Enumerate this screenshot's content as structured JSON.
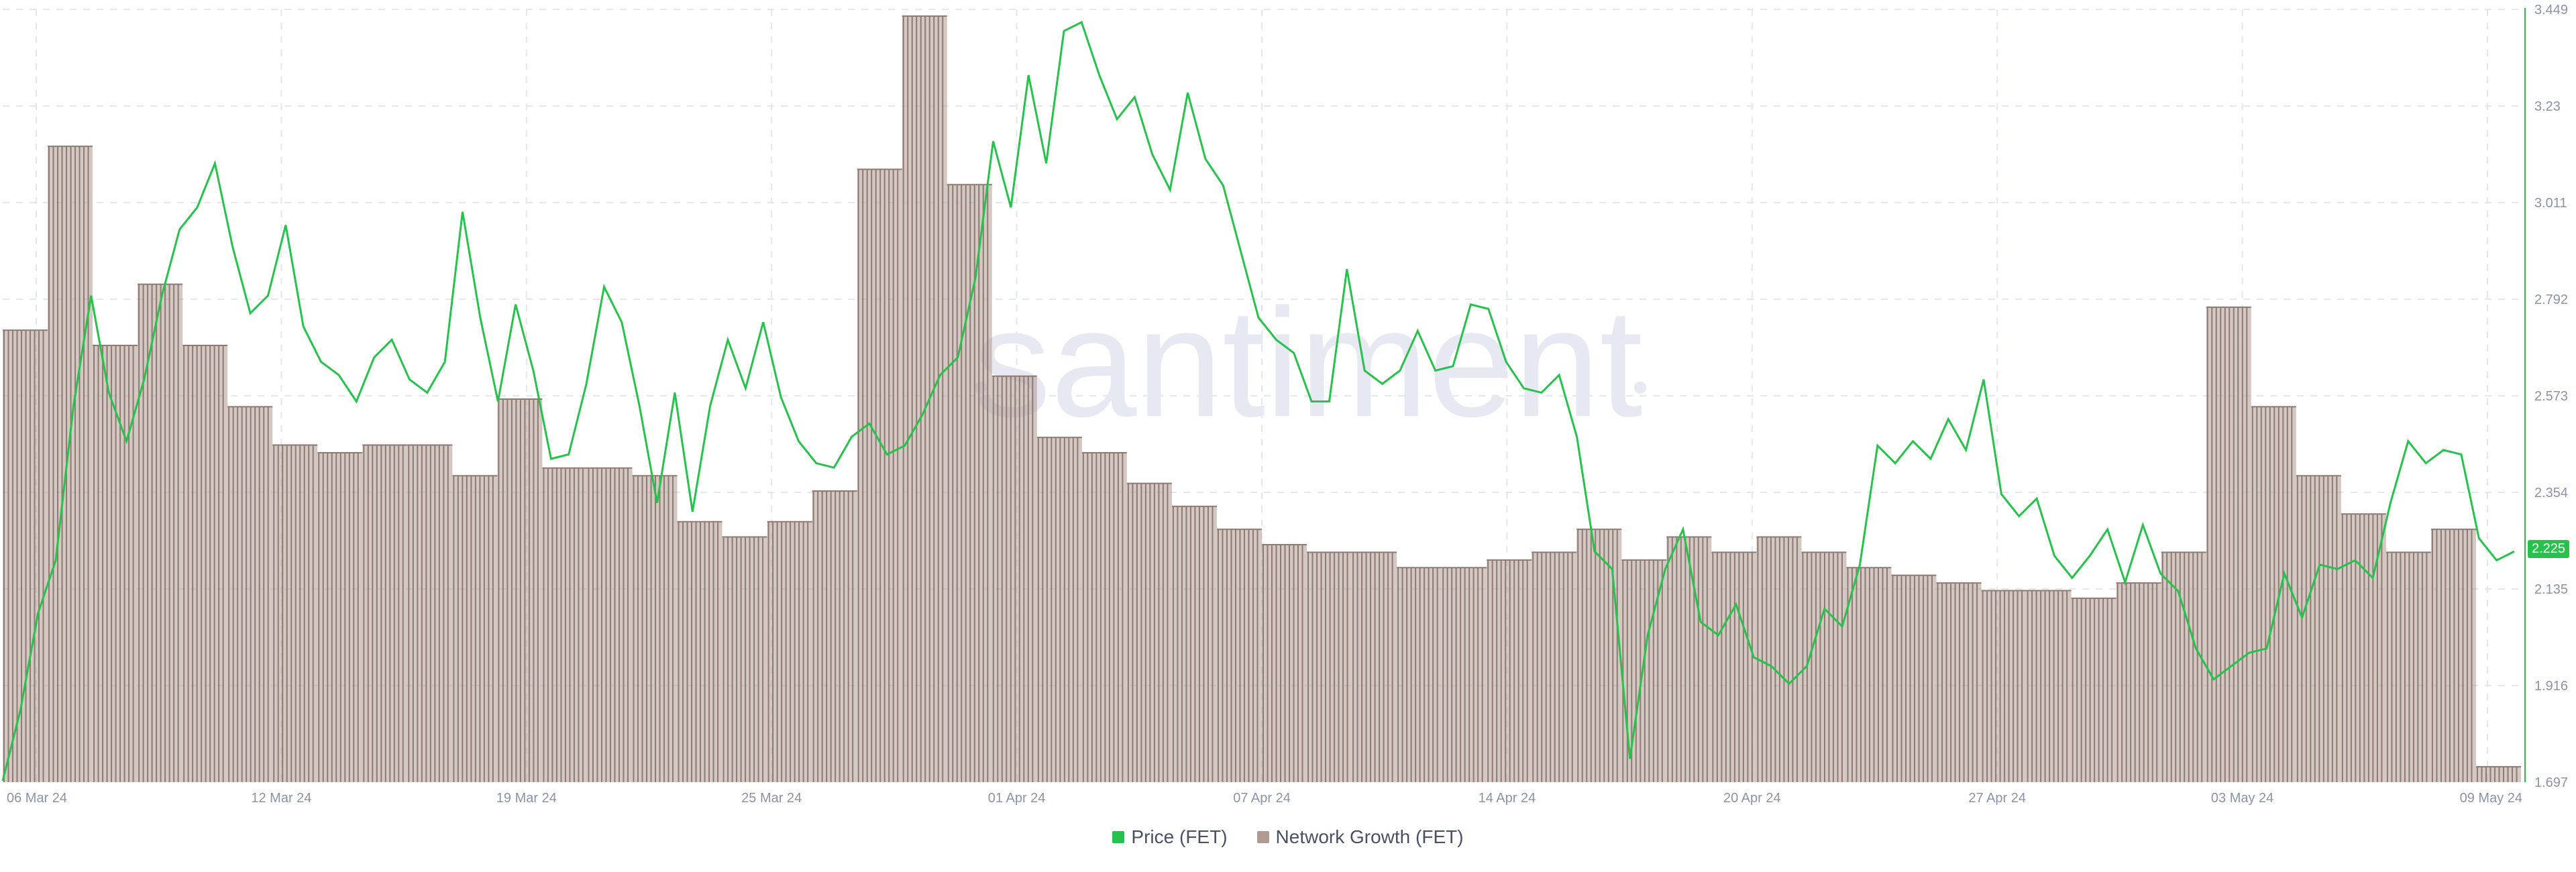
{
  "colors": {
    "price": "#26c24c",
    "network": "#b19a91",
    "network_stroke": "#8e7a72",
    "grid": "#e3e6ee",
    "axis_text": "#8a93a6",
    "watermark": "#e6e9f2"
  },
  "watermark": "santiment",
  "legend": {
    "price": "Price (FET)",
    "network": "Network Growth (FET)"
  },
  "price_badge": "2.225",
  "chart_data": {
    "type": "bar+line",
    "x_ticks": [
      "06 Mar 24",
      "12 Mar 24",
      "19 Mar 24",
      "25 Mar 24",
      "01 Apr 24",
      "07 Apr 24",
      "14 Apr 24",
      "20 Apr 24",
      "27 Apr 24",
      "03 May 24",
      "09 May 24"
    ],
    "y_right_ticks": [
      "1.697",
      "1.916",
      "2.135",
      "2.354",
      "2.573",
      "2.792",
      "3.011",
      "3.23",
      "3.449"
    ],
    "price_axis_range": [
      1.697,
      3.449
    ],
    "network_axis_range": [
      0,
      100
    ],
    "series": [
      {
        "name": "Price (FET)",
        "type": "line",
        "values": [
          1.7,
          1.86,
          2.08,
          2.2,
          2.55,
          2.8,
          2.58,
          2.47,
          2.61,
          2.8,
          2.95,
          3.0,
          3.1,
          2.91,
          2.76,
          2.8,
          2.96,
          2.73,
          2.65,
          2.62,
          2.56,
          2.66,
          2.7,
          2.61,
          2.58,
          2.65,
          2.99,
          2.75,
          2.56,
          2.78,
          2.63,
          2.43,
          2.44,
          2.6,
          2.82,
          2.74,
          2.55,
          2.33,
          2.58,
          2.31,
          2.55,
          2.7,
          2.59,
          2.74,
          2.57,
          2.47,
          2.42,
          2.41,
          2.48,
          2.51,
          2.44,
          2.46,
          2.53,
          2.62,
          2.66,
          2.84,
          3.15,
          3.0,
          3.3,
          3.1,
          3.4,
          3.42,
          3.3,
          3.2,
          3.25,
          3.12,
          3.04,
          3.26,
          3.11,
          3.05,
          2.9,
          2.75,
          2.7,
          2.67,
          2.56,
          2.56,
          2.86,
          2.63,
          2.6,
          2.63,
          2.72,
          2.63,
          2.64,
          2.78,
          2.77,
          2.65,
          2.59,
          2.58,
          2.62,
          2.48,
          2.22,
          2.18,
          1.75,
          2.03,
          2.18,
          2.27,
          2.06,
          2.03,
          2.1,
          1.98,
          1.96,
          1.92,
          1.96,
          2.09,
          2.05,
          2.19,
          2.46,
          2.42,
          2.47,
          2.43,
          2.52,
          2.45,
          2.61,
          2.35,
          2.3,
          2.34,
          2.21,
          2.16,
          2.21,
          2.27,
          2.15,
          2.28,
          2.17,
          2.13,
          2.0,
          1.93,
          1.96,
          1.99,
          2.0,
          2.17,
          2.07,
          2.19,
          2.18,
          2.2,
          2.16,
          2.33,
          2.47,
          2.42,
          2.45,
          2.44,
          2.25,
          2.2,
          2.22
        ],
        "note_color": "price"
      },
      {
        "name": "Network Growth (FET)",
        "type": "bar",
        "values": [
          59,
          83,
          57,
          65,
          57,
          49,
          44,
          43,
          44,
          44,
          40,
          50,
          41,
          41,
          40,
          34,
          32,
          34,
          38,
          80,
          100,
          78,
          53,
          45,
          43,
          39,
          36,
          33,
          31,
          30,
          30,
          28,
          28,
          29,
          30,
          33,
          29,
          32,
          30,
          32,
          30,
          28,
          27,
          26,
          25,
          25,
          24,
          26,
          30,
          62,
          49,
          40,
          35,
          30,
          33,
          2
        ]
      }
    ]
  }
}
